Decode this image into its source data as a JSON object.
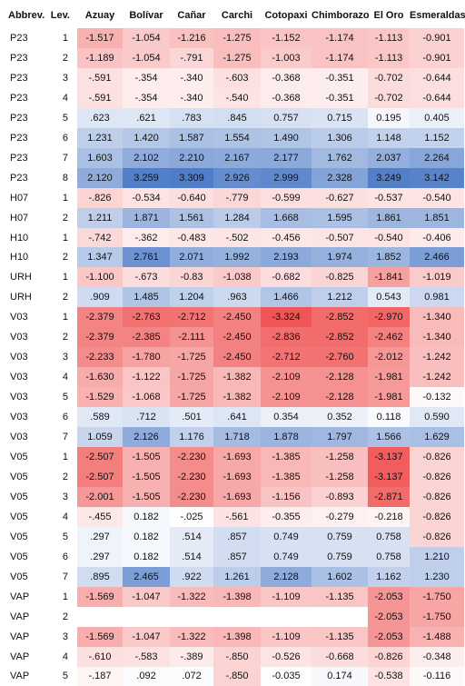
{
  "header": [
    "Abbrev.",
    "Lev.",
    "Azuay",
    "Bolívar",
    "Cañar",
    "Carchi",
    "Cotopaxi",
    "Chimborazo",
    "El Oro",
    "Esmeraldas"
  ],
  "rows": [
    {
      "abbr": "P23",
      "lev": "1",
      "cells": [
        "-1.517",
        "-1.054",
        "-1.216",
        "-1.275",
        "-1.152",
        "-1.174",
        "-1.113",
        "-0.901"
      ]
    },
    {
      "abbr": "P23",
      "lev": "2",
      "cells": [
        "-1.189",
        "-1.054",
        "-.791",
        "-1.275",
        "-1.003",
        "-1.174",
        "-1.113",
        "-0.901"
      ]
    },
    {
      "abbr": "P23",
      "lev": "3",
      "cells": [
        "-.591",
        "-.354",
        "-.340",
        "-.603",
        "-0.368",
        "-0.351",
        "-0.702",
        "-0.644"
      ]
    },
    {
      "abbr": "P23",
      "lev": "4",
      "cells": [
        "-.591",
        "-.354",
        "-.340",
        "-.540",
        "-0.368",
        "-0.351",
        "-0.702",
        "-0.644"
      ]
    },
    {
      "abbr": "P23",
      "lev": "5",
      "cells": [
        ".623",
        ".621",
        ".783",
        ".845",
        "0.757",
        "0.715",
        "0.195",
        "0.405"
      ]
    },
    {
      "abbr": "P23",
      "lev": "6",
      "cells": [
        "1.231",
        "1.420",
        "1.587",
        "1.554",
        "1.490",
        "1.306",
        "1.148",
        "1.152"
      ]
    },
    {
      "abbr": "P23",
      "lev": "7",
      "cells": [
        "1.603",
        "2.102",
        "2.210",
        "2.167",
        "2.177",
        "1.762",
        "2.037",
        "2.264"
      ]
    },
    {
      "abbr": "P23",
      "lev": "8",
      "cells": [
        "2.120",
        "3.259",
        "3.309",
        "2.926",
        "2.999",
        "2.328",
        "3.249",
        "3.142"
      ]
    },
    {
      "abbr": "H07",
      "lev": "1",
      "cells": [
        "-.826",
        "-0.534",
        "-0.640",
        "-.779",
        "-0.599",
        "-0.627",
        "-0.537",
        "-0.540"
      ]
    },
    {
      "abbr": "H07",
      "lev": "2",
      "cells": [
        "1.211",
        "1.871",
        "1.561",
        "1.284",
        "1.668",
        "1.595",
        "1.861",
        "1.851"
      ]
    },
    {
      "abbr": "H10",
      "lev": "1",
      "cells": [
        "-.742",
        "-.362",
        "-0.483",
        "-.502",
        "-0.456",
        "-0.507",
        "-0.540",
        "-0.406"
      ]
    },
    {
      "abbr": "H10",
      "lev": "2",
      "cells": [
        "1.347",
        "2.761",
        "2.071",
        "1.992",
        "2.193",
        "1.974",
        "1.852",
        "2.466"
      ]
    },
    {
      "abbr": "URH",
      "lev": "1",
      "cells": [
        "-1.100",
        "-.673",
        "-0.83",
        "-1.038",
        "-0.682",
        "-0.825",
        "-1.841",
        "-1.019"
      ]
    },
    {
      "abbr": "URH",
      "lev": "2",
      "cells": [
        ".909",
        "1.485",
        "1.204",
        ".963",
        "1.466",
        "1.212",
        "0.543",
        "0.981"
      ]
    },
    {
      "abbr": "V03",
      "lev": "1",
      "cells": [
        "-2.379",
        "-2.763",
        "-2.712",
        "-2.450",
        "-3.324",
        "-2.852",
        "-2.970",
        "-1.340"
      ]
    },
    {
      "abbr": "V03",
      "lev": "2",
      "cells": [
        "-2.379",
        "-2.385",
        "-2.111",
        "-2.450",
        "-2.836",
        "-2.852",
        "-2.462",
        "-1.340"
      ]
    },
    {
      "abbr": "V03",
      "lev": "3",
      "cells": [
        "-2.233",
        "-1.780",
        "-1.725",
        "-2.450",
        "-2.712",
        "-2.760",
        "-2.012",
        "-1.242"
      ]
    },
    {
      "abbr": "V03",
      "lev": "4",
      "cells": [
        "-1.630",
        "-1.122",
        "-1.725",
        "-1.382",
        "-2.109",
        "-2.128",
        "-1.981",
        "-1.242"
      ]
    },
    {
      "abbr": "V03",
      "lev": "5",
      "cells": [
        "-1.529",
        "-1.068",
        "-1.725",
        "-1.382",
        "-2.109",
        "-2.128",
        "-1.981",
        "-0.132"
      ]
    },
    {
      "abbr": "V03",
      "lev": "6",
      "cells": [
        ".589",
        ".712",
        ".501",
        ".641",
        "0.354",
        "0.352",
        "0.118",
        "0.590"
      ]
    },
    {
      "abbr": "V03",
      "lev": "7",
      "cells": [
        "1.059",
        "2.126",
        "1.176",
        "1.718",
        "1.878",
        "1.797",
        "1.566",
        "1.629"
      ]
    },
    {
      "abbr": "V05",
      "lev": "1",
      "cells": [
        "-2.507",
        "-1.505",
        "-2.230",
        "-1.693",
        "-1.385",
        "-1.258",
        "-3.137",
        "-0.826"
      ]
    },
    {
      "abbr": "V05",
      "lev": "2",
      "cells": [
        "-2.507",
        "-1.505",
        "-2.230",
        "-1.693",
        "-1.385",
        "-1.258",
        "-3.137",
        "-0.826"
      ]
    },
    {
      "abbr": "V05",
      "lev": "3",
      "cells": [
        "-2.001",
        "-1.505",
        "-2.230",
        "-1.693",
        "-1.156",
        "-0.893",
        "-2.871",
        "-0.826"
      ]
    },
    {
      "abbr": "V05",
      "lev": "4",
      "cells": [
        "-.455",
        "0.182",
        "-.025",
        "-.561",
        "-0.355",
        "-0.279",
        "-0.218",
        "-0.826"
      ]
    },
    {
      "abbr": "V05",
      "lev": "5",
      "cells": [
        ".297",
        "0.182",
        ".514",
        ".857",
        "0.749",
        "0.759",
        "0.758",
        "-0.826"
      ]
    },
    {
      "abbr": "V05",
      "lev": "6",
      "cells": [
        ".297",
        "0.182",
        ".514",
        ".857",
        "0.749",
        "0.759",
        "0.758",
        "1.210"
      ]
    },
    {
      "abbr": "V05",
      "lev": "7",
      "cells": [
        ".895",
        "2.465",
        ".922",
        "1.261",
        "2.128",
        "1.602",
        "1.162",
        "1.230"
      ]
    },
    {
      "abbr": "VAP",
      "lev": "1",
      "cells": [
        "-1.569",
        "-1.047",
        "-1.322",
        "-1.398",
        "-1.109",
        "-1.135",
        "-2.053",
        "-1.750"
      ]
    },
    {
      "abbr": "VAP",
      "lev": "2",
      "cells": [
        "",
        "",
        "",
        "",
        "",
        "",
        "-2.053",
        "-1.750"
      ]
    },
    {
      "abbr": "VAP",
      "lev": "3",
      "cells": [
        "-1.569",
        "-1.047",
        "-1.322",
        "-1.398",
        "-1.109",
        "-1.135",
        "-2.053",
        "-1.488"
      ]
    },
    {
      "abbr": "VAP",
      "lev": "4",
      "cells": [
        "-.610",
        "-.583",
        "-.389",
        "-.850",
        "-0.526",
        "-0.668",
        "-0.826",
        "-0.348"
      ]
    },
    {
      "abbr": "VAP",
      "lev": "5",
      "cells": [
        "-.187",
        ".092",
        ".072",
        "-.850",
        "-0.035",
        "0.174",
        "-0.538",
        "-0.116"
      ]
    }
  ]
}
